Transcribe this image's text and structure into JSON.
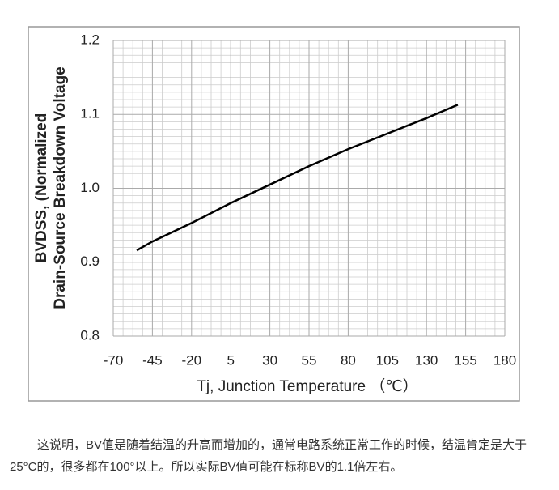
{
  "chart_data": {
    "type": "line",
    "ylabel": [
      "BVDSS, (Normalized",
      "Drain-Source Breakdown Voltage"
    ],
    "xlabel": "Tj, Junction Temperature （℃）",
    "x": [
      -55,
      -45,
      -20,
      5,
      30,
      55,
      80,
      105,
      130,
      150
    ],
    "values": [
      0.916,
      0.928,
      0.953,
      0.98,
      1.005,
      1.03,
      1.053,
      1.074,
      1.095,
      1.113
    ],
    "color": "#000000",
    "xlim": [
      -70,
      180
    ],
    "xticks": [
      -70,
      -45,
      -20,
      5,
      30,
      55,
      80,
      105,
      130,
      155,
      180
    ],
    "ylim": [
      0.8,
      1.2
    ],
    "yticks": [
      0.8,
      0.9,
      {
        "value": 1,
        "label": "1.0"
      },
      1.1,
      1.2
    ],
    "grid": true,
    "minor_grid": true
  },
  "paragraph": "这说明，BV值是随着结温的升高而增加的，通常电路系统正常工作的时候，结温肯定是大于25°C的，很多都在100°以上。所以实际BV值可能在标称BV的1.1倍左右。"
}
